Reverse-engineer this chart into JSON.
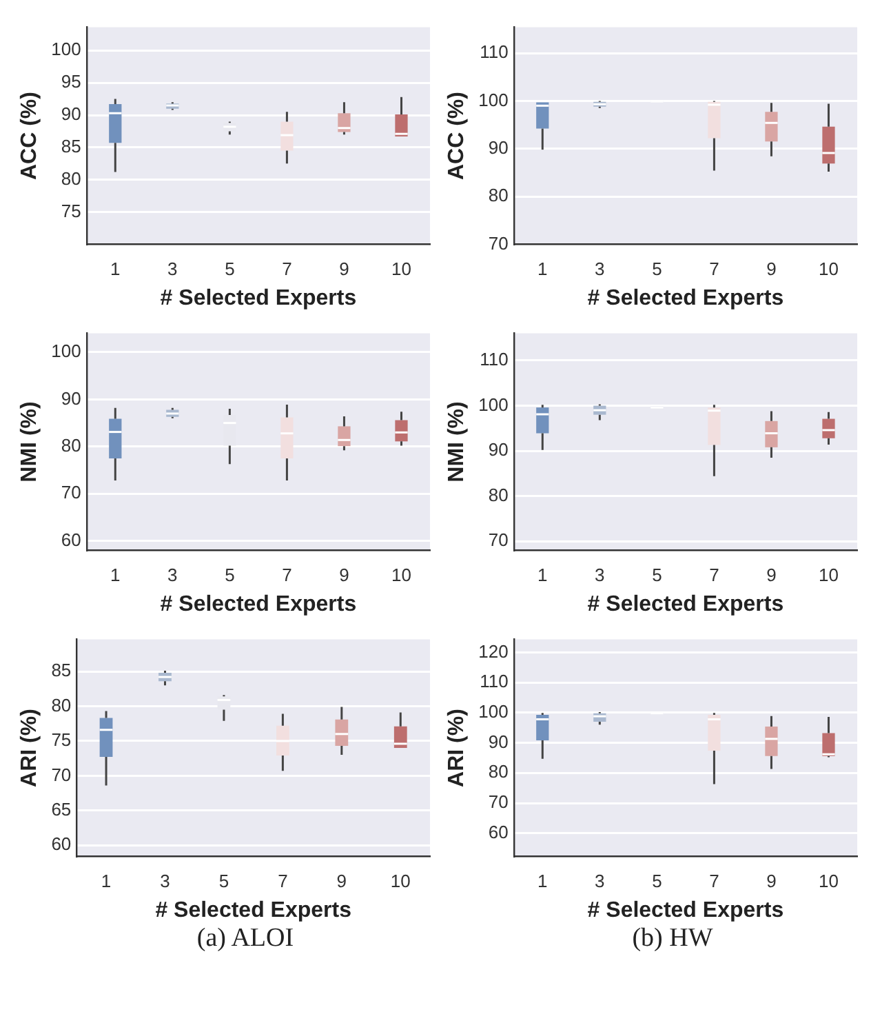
{
  "chart_data": [
    {
      "type": "box",
      "xlabel": "# Selected Experts",
      "ylabel": "ACC (%)",
      "categories": [
        "1",
        "3",
        "5",
        "7",
        "9",
        "10"
      ],
      "colors": [
        "#7191bd",
        "#a9b8cf",
        "#e8e8ef",
        "#f2dfdf",
        "#d9a5a3",
        "#bd6e6e"
      ],
      "ylim": [
        70,
        103.6
      ],
      "yticks": [
        75,
        80,
        85,
        90,
        95,
        100
      ],
      "grid": "y",
      "boxes": [
        {
          "low": 81.2,
          "q1": 85.7,
          "median": 90.3,
          "q3": 91.7,
          "high": 92.5
        },
        {
          "low": 90.8,
          "q1": 91,
          "median": 91.5,
          "q3": 91.8,
          "high": 92
        },
        {
          "low": 87,
          "q1": 87.5,
          "median": 88.2,
          "q3": 88.8,
          "high": 89
        },
        {
          "low": 82.5,
          "q1": 84.5,
          "median": 86.9,
          "q3": 89,
          "high": 90.5
        },
        {
          "low": 87,
          "q1": 87.4,
          "median": 88,
          "q3": 90.3,
          "high": 92
        },
        {
          "low": 86.7,
          "q1": 86.7,
          "median": 87.1,
          "q3": 90.1,
          "high": 92.8
        }
      ]
    },
    {
      "type": "box",
      "xlabel": "# Selected Experts",
      "ylabel": "ACC (%)",
      "categories": [
        "1",
        "3",
        "5",
        "7",
        "9",
        "10"
      ],
      "colors": [
        "#7191bd",
        "#a9b8cf",
        "#e8e8ef",
        "#f2dfdf",
        "#d9a5a3",
        "#bd6e6e"
      ],
      "ylim": [
        70,
        115.4
      ],
      "yticks": [
        70,
        80,
        90,
        100,
        110
      ],
      "grid": "y",
      "boxes": [
        {
          "low": 89.8,
          "q1": 94.2,
          "median": 99,
          "q3": 99.7,
          "high": 99.7
        },
        {
          "low": 98.5,
          "q1": 98.8,
          "median": 99.3,
          "q3": 99.8,
          "high": 100
        },
        {
          "low": 99.8,
          "q1": 99.8,
          "median": 99.9,
          "q3": 100,
          "high": 100
        },
        {
          "low": 85.4,
          "q1": 92.2,
          "median": 99.2,
          "q3": 99.8,
          "high": 100
        },
        {
          "low": 88.4,
          "q1": 91.5,
          "median": 95.4,
          "q3": 97.7,
          "high": 99.6
        },
        {
          "low": 85.2,
          "q1": 86.9,
          "median": 89.1,
          "q3": 94.6,
          "high": 99.4
        }
      ]
    },
    {
      "type": "box",
      "xlabel": "# Selected Experts",
      "ylabel": "NMI (%)",
      "categories": [
        "1",
        "3",
        "5",
        "7",
        "9",
        "10"
      ],
      "colors": [
        "#7191bd",
        "#a9b8cf",
        "#e8e8ef",
        "#f2dfdf",
        "#d9a5a3",
        "#bd6e6e"
      ],
      "ylim": [
        58,
        104
      ],
      "yticks": [
        60,
        70,
        80,
        90,
        100
      ],
      "grid": "y",
      "boxes": [
        {
          "low": 72.8,
          "q1": 77.5,
          "median": 83.1,
          "q3": 85.9,
          "high": 88.2
        },
        {
          "low": 86,
          "q1": 86.3,
          "median": 87,
          "q3": 87.8,
          "high": 88.2
        },
        {
          "low": 76.3,
          "q1": 80.2,
          "median": 85,
          "q3": 86.7,
          "high": 88
        },
        {
          "low": 72.8,
          "q1": 77.5,
          "median": 82.8,
          "q3": 86.2,
          "high": 88.9
        },
        {
          "low": 79.2,
          "q1": 80.1,
          "median": 81.4,
          "q3": 84.3,
          "high": 86.4
        },
        {
          "low": 80.2,
          "q1": 81.1,
          "median": 83,
          "q3": 85.6,
          "high": 87.4
        }
      ]
    },
    {
      "type": "box",
      "xlabel": "# Selected Experts",
      "ylabel": "NMI (%)",
      "categories": [
        "1",
        "3",
        "5",
        "7",
        "9",
        "10"
      ],
      "colors": [
        "#7191bd",
        "#a9b8cf",
        "#e8e8ef",
        "#f2dfdf",
        "#d9a5a3",
        "#bd6e6e"
      ],
      "ylim": [
        68,
        116
      ],
      "yticks": [
        70,
        80,
        90,
        100,
        110
      ],
      "grid": "y",
      "boxes": [
        {
          "low": 90.2,
          "q1": 93.9,
          "median": 98.1,
          "q3": 99.6,
          "high": 100.2
        },
        {
          "low": 96.8,
          "q1": 98,
          "median": 99,
          "q3": 100,
          "high": 100.3
        },
        {
          "low": 99.2,
          "q1": 99.2,
          "median": 99.6,
          "q3": 99.9,
          "high": 99.9
        },
        {
          "low": 84.4,
          "q1": 91.3,
          "median": 98.9,
          "q3": 99.6,
          "high": 100.2
        },
        {
          "low": 88.5,
          "q1": 90.8,
          "median": 93.9,
          "q3": 96.6,
          "high": 98.8
        },
        {
          "low": 91.4,
          "q1": 92.8,
          "median": 94.6,
          "q3": 97.1,
          "high": 98.6
        }
      ]
    },
    {
      "type": "box",
      "xlabel": "# Selected Experts",
      "ylabel": "ARI (%)",
      "categories": [
        "1",
        "3",
        "5",
        "7",
        "9",
        "10"
      ],
      "colors": [
        "#7191bd",
        "#a9b8cf",
        "#e8e8ef",
        "#f2dfdf",
        "#d9a5a3",
        "#bd6e6e"
      ],
      "ylim": [
        58.4,
        89.6
      ],
      "yticks": [
        60,
        65,
        70,
        75,
        80,
        85
      ],
      "grid": "y",
      "annotations": [
        "(a) ALOI"
      ],
      "boxes": [
        {
          "low": 68.6,
          "q1": 72.7,
          "median": 76.6,
          "q3": 78.3,
          "high": 79.3
        },
        {
          "low": 83,
          "q1": 83.6,
          "median": 84.2,
          "q3": 84.8,
          "high": 85.1
        },
        {
          "low": 77.9,
          "q1": 79.5,
          "median": 80.9,
          "q3": 81.4,
          "high": 81.6
        },
        {
          "low": 70.7,
          "q1": 72.9,
          "median": 75,
          "q3": 77.2,
          "high": 78.9
        },
        {
          "low": 73,
          "q1": 74.3,
          "median": 76,
          "q3": 78.1,
          "high": 79.9
        },
        {
          "low": 74,
          "q1": 74,
          "median": 74.6,
          "q3": 77.1,
          "high": 79.1
        }
      ]
    },
    {
      "type": "box",
      "xlabel": "# Selected Experts",
      "ylabel": "ARI (%)",
      "categories": [
        "1",
        "3",
        "5",
        "7",
        "9",
        "10"
      ],
      "colors": [
        "#7191bd",
        "#a9b8cf",
        "#e8e8ef",
        "#f2dfdf",
        "#d9a5a3",
        "#bd6e6e"
      ],
      "ylim": [
        52.3,
        124.3
      ],
      "yticks": [
        60,
        70,
        80,
        90,
        100,
        110,
        120
      ],
      "grid": "y",
      "annotations": [
        "(b) HW"
      ],
      "boxes": [
        {
          "low": 84.7,
          "q1": 90.8,
          "median": 97.8,
          "q3": 99.3,
          "high": 99.9
        },
        {
          "low": 96,
          "q1": 97,
          "median": 98.8,
          "q3": 99.8,
          "high": 100.2
        },
        {
          "low": 99.4,
          "q1": 99.4,
          "median": 99.8,
          "q3": 100,
          "high": 100
        },
        {
          "low": 76.3,
          "q1": 87.4,
          "median": 97.8,
          "q3": 99.3,
          "high": 99.9
        },
        {
          "low": 81.3,
          "q1": 85.6,
          "median": 91.3,
          "q3": 95.4,
          "high": 98.9
        },
        {
          "low": 85.2,
          "q1": 85.6,
          "median": 86.2,
          "q3": 93.2,
          "high": 98.6
        }
      ]
    }
  ]
}
